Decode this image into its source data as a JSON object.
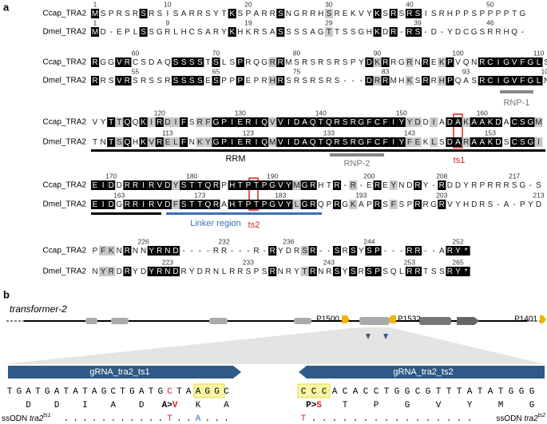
{
  "panel_a": {
    "label": "a",
    "blocks": [
      {
        "rows": [
          {
            "name": "Ccap_TRA2",
            "seq": "MSPRSRSRSISARRSYTKSPARRSNGRRHSREKVYKSRSRSISRHPPSPPPPTG",
            "numbers": [
              1,
              10,
              20,
              30,
              40,
              50
            ]
          },
          {
            "name": "Dmel_TRA2",
            "seq": "MD-EPLSSGRLHCSARYKHKRSASSSSAGTTSSGHKDR-RS-D-YDCGSRRHQ-",
            "numbers": [
              1,
              9,
              19,
              29,
              39,
              46
            ]
          }
        ]
      },
      {
        "rows": [
          {
            "name": "Ccap_TRA2",
            "seq": "RGGVRCSDAQSSSSTSLSPRQGRRMSRSRSRSPYDKRRGRNREKPVQNRCIGVFGLS",
            "numbers": [
              60,
              70,
              80,
              90,
              100,
              110
            ]
          },
          {
            "name": "Dmel_TRA2",
            "seq": "RRSVRSRSSRSSSSESPPPEPRHRSRSRSRS---DRRMHKSRRHPQASRCIGVFGLN",
            "numbers": [
              55,
              65,
              75,
              83,
              93,
              103
            ]
          }
        ]
      },
      {
        "rows": [
          {
            "name": "Ccap_TRA2",
            "seq": "VYTTQQKIRDIFSRFGPIERIQVVIDAQTQRSRGFCFIYYDDIADAKAAKDACSGM",
            "numbers": [
              120,
              130,
              140,
              150,
              160
            ]
          },
          {
            "name": "Dmel_TRA2",
            "seq": "TNTSQHKVRELFNKYGPIERIQMVIDAQTQRSRGFCFIYFEKLSDARAAKDSCSGI",
            "numbers": [
              113,
              123,
              133,
              143,
              153
            ]
          }
        ]
      },
      {
        "rows": [
          {
            "name": "Ccap_TRA2",
            "seq": "EIDDRRIRVDYSTTQRPHTPTPGVYMGRHTR-R-EREYNDRY-RDDYRPRRRSG-S",
            "numbers": [
              170,
              180,
              190,
              200,
              208,
              217
            ]
          },
          {
            "name": "Dmel_TRA2",
            "seq": "EIDGRRIRVDFSTTQRAHTPTPGVYLGRQPRGKAPRSFSPRRGRVYHDRS-A-PYD",
            "numbers": [
              163,
              173,
              183,
              193,
              203,
              213
            ]
          }
        ]
      },
      {
        "rows": [
          {
            "name": "Ccap_TRA2",
            "seq": "PFKNRNNYRND----RR---R-RYDRSR--SRSYSP---RR--ARY*",
            "numbers": [
              226,
              232,
              236,
              244,
              252
            ]
          },
          {
            "name": "Dmel_TRA2",
            "seq": "NYRDRYDYRNDRYDRNLRRSPSRNRYTRNRSYSRSPSQLRRTSSRY*",
            "numbers": [
              223,
              233,
              243,
              253,
              265
            ]
          }
        ]
      }
    ],
    "annotations": {
      "rnp1": "RNP-1",
      "rnp2": "RNP-2",
      "rrm": "RRM",
      "ts1": "ts1",
      "ts2": "ts2",
      "linker": "Linker region"
    }
  },
  "panel_b": {
    "label": "b",
    "gene": "transformer-2",
    "promoters": [
      "P1500",
      "P1532",
      "P1401"
    ],
    "grnas": [
      {
        "name": "gRNA_tra2_ts1",
        "dna": "TGATGATATAGCTGATGCTAAGGC",
        "aa": [
          "D",
          "D",
          "I",
          "A",
          "D",
          "A>V",
          "K",
          "A"
        ],
        "ssodn": {
          "label": "ssODN",
          "gene": "tra2",
          "sup": "ts1",
          "seq": "...........T..A..."
        }
      },
      {
        "name": "gRNA_tra2_ts2",
        "dna": "CCCACACCTGGCGTTTATATGGG",
        "aa": [
          "P>S",
          "T",
          "P",
          "G",
          "V",
          "Y",
          "M",
          "G"
        ],
        "ssodn": {
          "label": "ssODN",
          "gene": "tra2",
          "sup": "ts2",
          "seq": "T................"
        }
      }
    ]
  }
}
